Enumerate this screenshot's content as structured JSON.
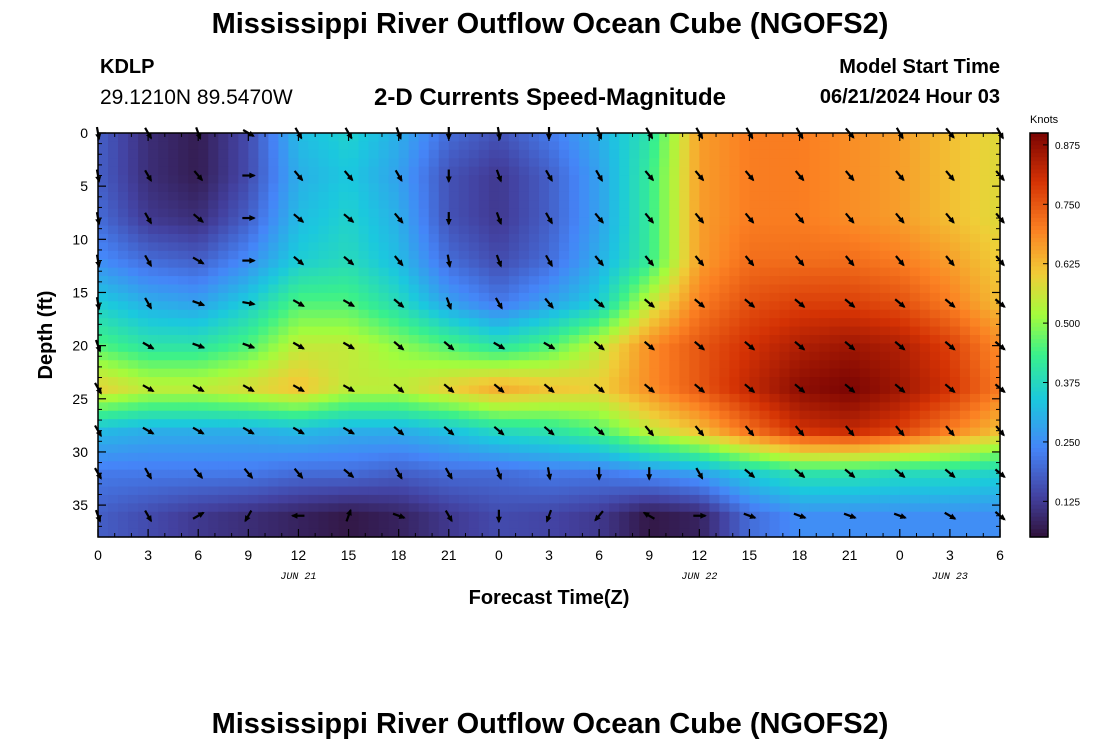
{
  "page": {
    "title": "Mississippi River Outflow Ocean Cube (NGOFS2)",
    "station_id": "KDLP",
    "station_coords": "29.1210N  89.5470W",
    "subtitle": "2-D Currents Speed-Magnitude",
    "model_start_label": "Model Start Time",
    "model_start_time": "06/21/2024 Hour 03",
    "footer_title": "Mississippi River Outflow Ocean Cube (NGOFS2)"
  },
  "chart_data": {
    "type": "heatmap",
    "title": "2-D Currents Speed-Magnitude",
    "xlabel": "Forecast Time(Z)",
    "ylabel": "Depth (ft)",
    "x_ticks": [
      "0",
      "3",
      "6",
      "9",
      "12",
      "15",
      "18",
      "21",
      "0",
      "3",
      "6",
      "9",
      "12",
      "15",
      "18",
      "21",
      "0",
      "3",
      "6"
    ],
    "date_labels": [
      {
        "text": "JUN 21",
        "tick_index": 4
      },
      {
        "text": "JUN 22",
        "tick_index": 12
      },
      {
        "text": "JUN 23",
        "tick_index": 17
      }
    ],
    "xlim": [
      0,
      18
    ],
    "ylim": [
      38,
      0
    ],
    "y_ticks": [
      0,
      5,
      10,
      15,
      20,
      25,
      30,
      35
    ],
    "colorbar": {
      "label": "Knots",
      "min": 0.05,
      "max": 0.9,
      "ticks": [
        "0.125",
        "0.250",
        "0.375",
        "0.500",
        "0.625",
        "0.750",
        "0.875"
      ],
      "tick_values": [
        0.125,
        0.25,
        0.375,
        0.5,
        0.625,
        0.75,
        0.875
      ]
    },
    "speed_grid": {
      "x_index": [
        0,
        1,
        2,
        3,
        4,
        5,
        6,
        7,
        8,
        9,
        10,
        11,
        12,
        13,
        14,
        15,
        16,
        17,
        18
      ],
      "depths_ft": [
        0,
        4,
        8,
        12,
        16,
        20,
        24,
        28,
        32,
        36
      ],
      "values": [
        [
          0.18,
          0.1,
          0.07,
          0.15,
          0.32,
          0.36,
          0.3,
          0.2,
          0.16,
          0.22,
          0.3,
          0.4,
          0.66,
          0.7,
          0.7,
          0.68,
          0.66,
          0.62,
          0.58
        ],
        [
          0.18,
          0.1,
          0.07,
          0.15,
          0.3,
          0.34,
          0.28,
          0.16,
          0.12,
          0.18,
          0.28,
          0.42,
          0.66,
          0.7,
          0.7,
          0.68,
          0.66,
          0.62,
          0.58
        ],
        [
          0.2,
          0.12,
          0.1,
          0.18,
          0.32,
          0.36,
          0.3,
          0.16,
          0.12,
          0.18,
          0.28,
          0.42,
          0.66,
          0.7,
          0.7,
          0.68,
          0.66,
          0.62,
          0.58
        ],
        [
          0.25,
          0.2,
          0.18,
          0.25,
          0.35,
          0.38,
          0.32,
          0.2,
          0.15,
          0.2,
          0.3,
          0.42,
          0.66,
          0.72,
          0.72,
          0.72,
          0.7,
          0.66,
          0.6
        ],
        [
          0.35,
          0.3,
          0.28,
          0.35,
          0.45,
          0.45,
          0.38,
          0.28,
          0.22,
          0.28,
          0.35,
          0.55,
          0.7,
          0.76,
          0.78,
          0.78,
          0.76,
          0.7,
          0.62
        ],
        [
          0.45,
          0.4,
          0.4,
          0.45,
          0.55,
          0.55,
          0.5,
          0.45,
          0.4,
          0.45,
          0.55,
          0.68,
          0.75,
          0.8,
          0.84,
          0.86,
          0.84,
          0.78,
          0.68
        ],
        [
          0.6,
          0.55,
          0.55,
          0.58,
          0.62,
          0.55,
          0.55,
          0.6,
          0.65,
          0.62,
          0.6,
          0.68,
          0.75,
          0.82,
          0.88,
          0.9,
          0.86,
          0.8,
          0.7
        ],
        [
          0.32,
          0.3,
          0.3,
          0.3,
          0.32,
          0.3,
          0.3,
          0.33,
          0.38,
          0.4,
          0.45,
          0.55,
          0.62,
          0.72,
          0.8,
          0.82,
          0.78,
          0.7,
          0.62
        ],
        [
          0.22,
          0.22,
          0.22,
          0.22,
          0.2,
          0.2,
          0.18,
          0.2,
          0.2,
          0.22,
          0.22,
          0.25,
          0.28,
          0.35,
          0.4,
          0.4,
          0.38,
          0.38,
          0.36
        ],
        [
          0.18,
          0.15,
          0.12,
          0.1,
          0.08,
          0.06,
          0.08,
          0.12,
          0.15,
          0.14,
          0.12,
          0.06,
          0.08,
          0.2,
          0.25,
          0.25,
          0.25,
          0.25,
          0.25
        ]
      ]
    },
    "vectors": {
      "depths_ft": [
        0,
        4,
        8,
        12,
        16,
        20,
        24,
        28,
        32,
        36
      ],
      "x_index": [
        0,
        1,
        2,
        3,
        4,
        5,
        6,
        7,
        8,
        9,
        10,
        11,
        12,
        13,
        14,
        15,
        16,
        17,
        18
      ],
      "direction_deg": [
        [
          170,
          150,
          160,
          120,
          150,
          150,
          160,
          180,
          170,
          180,
          160,
          150,
          150,
          150,
          150,
          140,
          150,
          140,
          150
        ],
        [
          170,
          150,
          140,
          90,
          140,
          140,
          150,
          180,
          160,
          150,
          150,
          140,
          140,
          140,
          140,
          140,
          140,
          140,
          140
        ],
        [
          170,
          150,
          130,
          90,
          130,
          130,
          140,
          180,
          160,
          150,
          140,
          140,
          140,
          140,
          140,
          140,
          140,
          140,
          140
        ],
        [
          170,
          150,
          120,
          90,
          130,
          130,
          140,
          170,
          160,
          150,
          140,
          140,
          140,
          140,
          140,
          140,
          140,
          140,
          140
        ],
        [
          170,
          150,
          110,
          100,
          120,
          120,
          130,
          160,
          150,
          140,
          130,
          130,
          130,
          130,
          130,
          130,
          130,
          130,
          130
        ],
        [
          160,
          120,
          110,
          110,
          120,
          120,
          130,
          130,
          120,
          120,
          130,
          130,
          130,
          130,
          130,
          130,
          130,
          130,
          130
        ],
        [
          150,
          120,
          120,
          120,
          120,
          120,
          130,
          130,
          130,
          130,
          130,
          130,
          130,
          130,
          130,
          130,
          130,
          130,
          130
        ],
        [
          150,
          120,
          120,
          120,
          120,
          120,
          130,
          130,
          130,
          130,
          130,
          140,
          140,
          140,
          140,
          140,
          140,
          140,
          140
        ],
        [
          150,
          150,
          140,
          140,
          140,
          130,
          150,
          150,
          160,
          170,
          180,
          180,
          150,
          130,
          130,
          130,
          130,
          130,
          130
        ],
        [
          160,
          150,
          60,
          210,
          270,
          20,
          110,
          150,
          180,
          200,
          220,
          300,
          90,
          110,
          110,
          110,
          110,
          120,
          130
        ]
      ]
    }
  }
}
